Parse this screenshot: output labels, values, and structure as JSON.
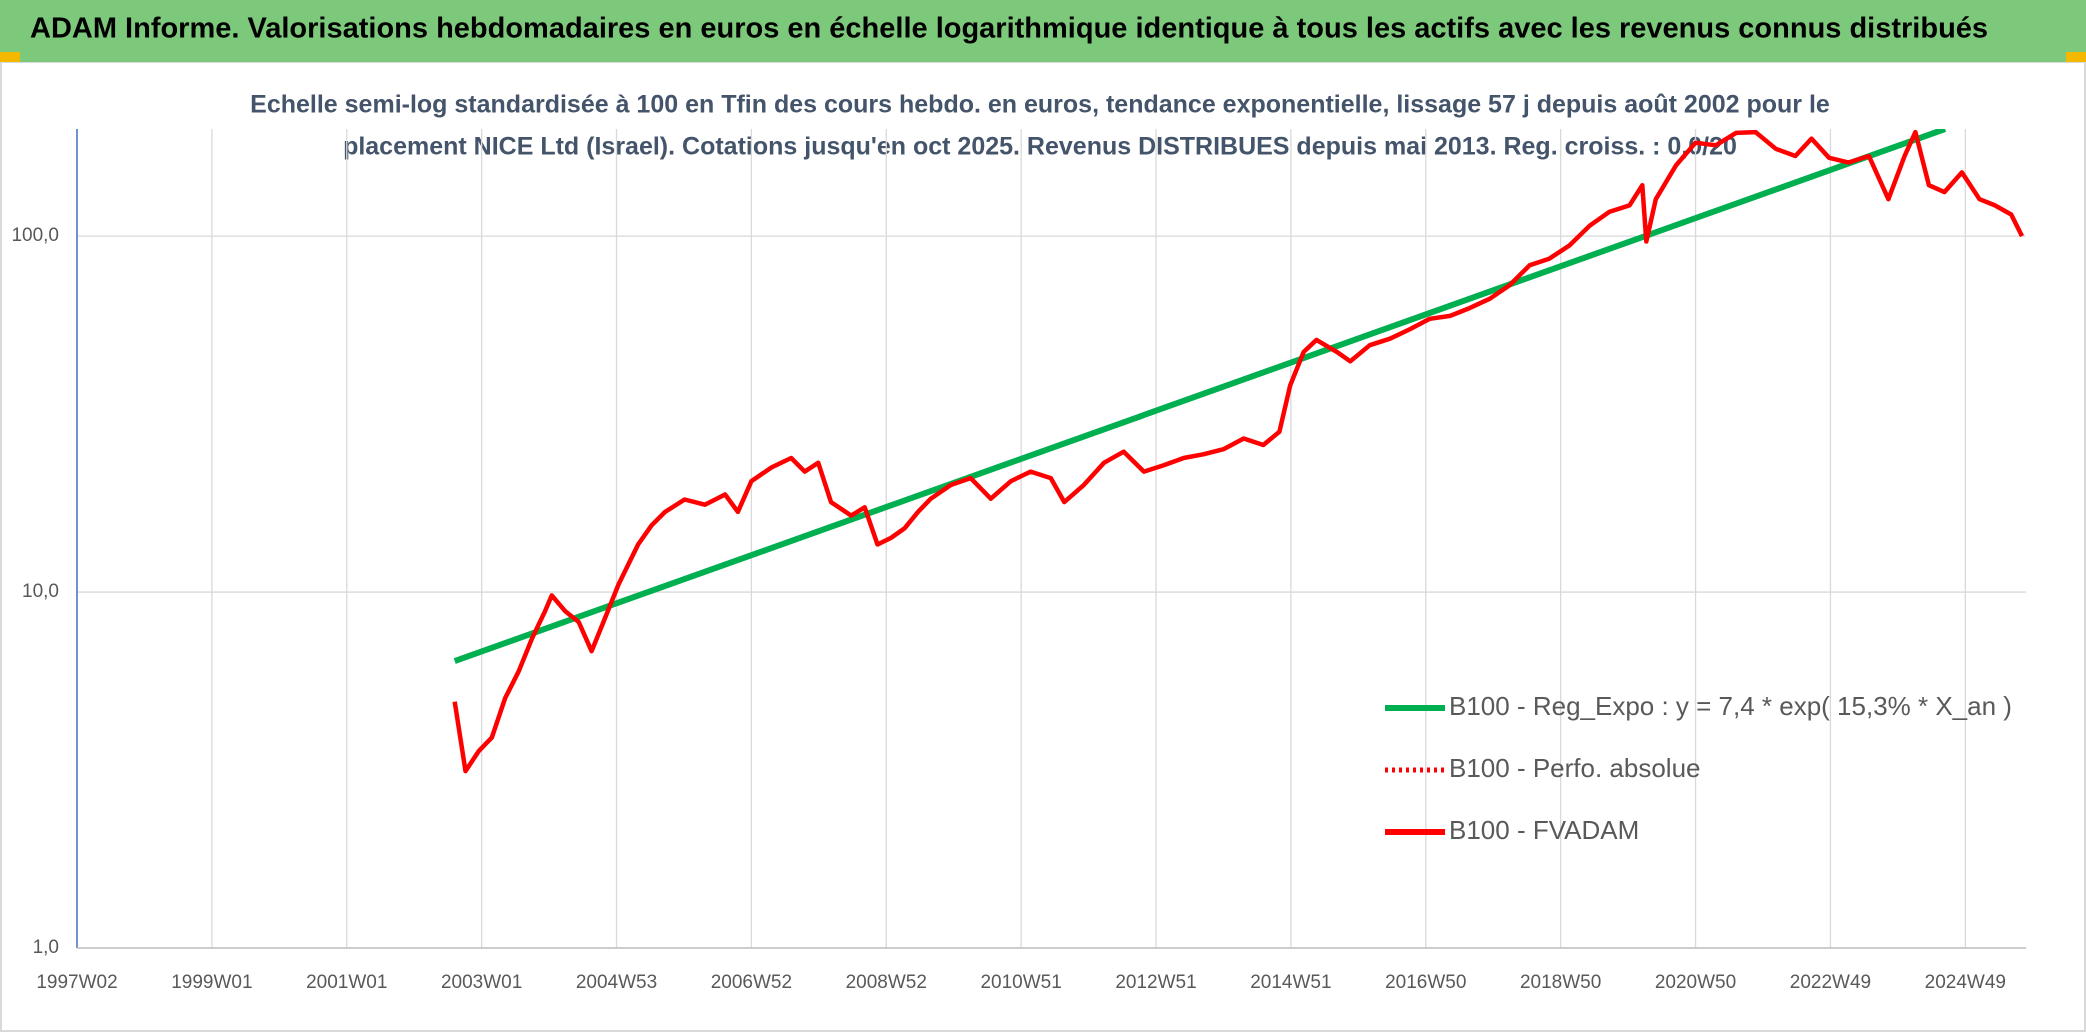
{
  "header": {
    "title": "ADAM Informe. Valorisations hebdomadaires en euros en échelle logarithmique identique à tous les actifs avec les revenus connus distribués"
  },
  "chart_data": {
    "type": "line",
    "subtitle": [
      "Echelle semi-log standardisée à 100 en Tfin des cours hebdo. en euros, tendance exponentielle, lissage 57 j depuis août 2002 pour le",
      "placement NICE Ltd (Israel). Cotations jusqu'en oct 2025. Revenus DISTRIBUES depuis mai 2013. Reg. croiss. : 0,0/20"
    ],
    "log_scale": true,
    "grid": true,
    "legend": "right",
    "xlim": [
      1997.0,
      2025.9
    ],
    "xticks": [
      {
        "value": 1997.0,
        "label": "1997W02"
      },
      {
        "value": 1999.0,
        "label": "1999W01"
      },
      {
        "value": 2001.0,
        "label": "2001W01"
      },
      {
        "value": 2003.0,
        "label": "2003W01"
      },
      {
        "value": 2005.0,
        "label": "2004W53"
      },
      {
        "value": 2007.0,
        "label": "2006W52"
      },
      {
        "value": 2009.0,
        "label": "2008W52"
      },
      {
        "value": 2011.0,
        "label": "2010W51"
      },
      {
        "value": 2013.0,
        "label": "2012W51"
      },
      {
        "value": 2015.0,
        "label": "2014W51"
      },
      {
        "value": 2017.0,
        "label": "2016W50"
      },
      {
        "value": 2019.0,
        "label": "2018W50"
      },
      {
        "value": 2021.0,
        "label": "2020W50"
      },
      {
        "value": 2023.0,
        "label": "2022W49"
      },
      {
        "value": 2025.0,
        "label": "2024W49"
      }
    ],
    "ylim": [
      1,
      200
    ],
    "yticks": [
      {
        "value": 1,
        "label": "1,0"
      },
      {
        "value": 10,
        "label": "10,0"
      },
      {
        "value": 100,
        "label": "100,0"
      }
    ],
    "series": [
      {
        "name": "B100 - Reg_Expo : y = 7,4 * exp( 15,3% *  X_an )",
        "color": "#00b050",
        "dash": "solid",
        "x": [
          2002.6,
          2024.7
        ],
        "values": [
          6.4,
          200
        ]
      },
      {
        "name": "B100 - Perfo. absolue",
        "color": "#ff0000",
        "dash": "dotted",
        "x": [],
        "values": []
      },
      {
        "name": "B100 - FVADAM",
        "color": "#ff0000",
        "dash": "solid",
        "x": [
          2002.6,
          2002.76,
          2002.96,
          2003.15,
          2003.35,
          2003.55,
          2003.75,
          2003.94,
          2004.04,
          2004.24,
          2004.44,
          2004.63,
          2004.83,
          2005.03,
          2005.32,
          2005.52,
          2005.72,
          2006.01,
          2006.31,
          2006.61,
          2006.8,
          2007.0,
          2007.3,
          2007.59,
          2007.79,
          2007.99,
          2008.18,
          2008.48,
          2008.68,
          2008.87,
          2009.07,
          2009.27,
          2009.47,
          2009.66,
          2009.96,
          2010.25,
          2010.55,
          2010.85,
          2011.14,
          2011.44,
          2011.64,
          2011.93,
          2012.23,
          2012.52,
          2012.82,
          2013.11,
          2013.41,
          2013.71,
          2014.0,
          2014.3,
          2014.59,
          2014.83,
          2014.99,
          2015.19,
          2015.38,
          2015.68,
          2015.88,
          2016.17,
          2016.47,
          2016.76,
          2017.06,
          2017.36,
          2017.65,
          2017.95,
          2018.24,
          2018.54,
          2018.83,
          2019.13,
          2019.43,
          2019.72,
          2020.02,
          2020.21,
          2020.27,
          2020.41,
          2020.71,
          2021.0,
          2021.3,
          2021.6,
          2021.89,
          2022.19,
          2022.48,
          2022.72,
          2022.98,
          2023.27,
          2023.57,
          2023.86,
          2024.1,
          2024.26,
          2024.46,
          2024.69,
          2024.95,
          2025.21,
          2025.44,
          2025.68,
          2025.84
        ],
        "values": [
          4.92,
          3.14,
          3.58,
          3.9,
          5.04,
          5.99,
          7.43,
          8.83,
          9.79,
          8.83,
          8.24,
          6.82,
          8.46,
          10.5,
          13.6,
          15.4,
          16.8,
          18.2,
          17.6,
          18.8,
          16.8,
          20.5,
          22.4,
          23.8,
          21.8,
          23.1,
          17.9,
          16.4,
          17.3,
          13.6,
          14.2,
          15.1,
          16.8,
          18.3,
          20.0,
          20.9,
          18.3,
          20.5,
          21.8,
          20.9,
          17.9,
          20.0,
          23.1,
          24.8,
          21.8,
          22.7,
          23.8,
          24.4,
          25.2,
          27.0,
          25.9,
          28.2,
          38.1,
          47.3,
          51.1,
          47.3,
          44.5,
          49.4,
          51.5,
          54.7,
          58.6,
          59.7,
          62.8,
          66.7,
          72.7,
          82.8,
          86.4,
          94.1,
          107,
          117,
          122,
          139,
          96.6,
          127,
          158,
          183,
          180,
          195,
          196,
          176,
          168,
          188,
          166,
          161,
          168,
          127,
          168,
          196,
          139,
          133,
          151,
          127,
          122,
          115,
          100
        ]
      }
    ]
  }
}
